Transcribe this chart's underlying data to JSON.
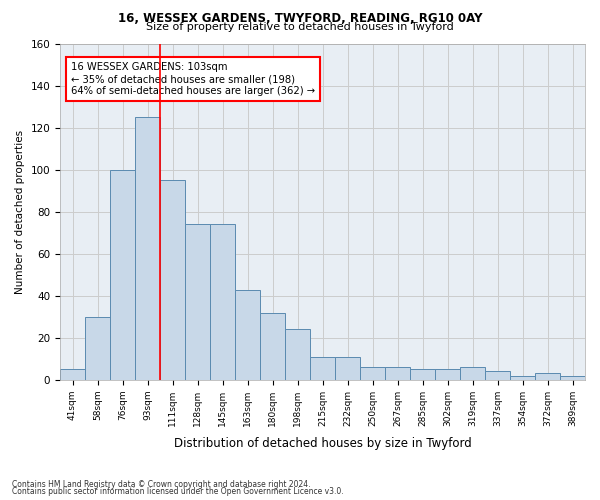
{
  "title1": "16, WESSEX GARDENS, TWYFORD, READING, RG10 0AY",
  "title2": "Size of property relative to detached houses in Twyford",
  "xlabel": "Distribution of detached houses by size in Twyford",
  "ylabel": "Number of detached properties",
  "bar_color": "#c8d8e8",
  "bar_edge_color": "#5a8ab0",
  "bins": [
    "41sqm",
    "58sqm",
    "76sqm",
    "93sqm",
    "111sqm",
    "128sqm",
    "145sqm",
    "163sqm",
    "180sqm",
    "198sqm",
    "215sqm",
    "232sqm",
    "250sqm",
    "267sqm",
    "285sqm",
    "302sqm",
    "319sqm",
    "337sqm",
    "354sqm",
    "372sqm",
    "389sqm"
  ],
  "bar_values": [
    5,
    30,
    100,
    125,
    95,
    74,
    74,
    43,
    32,
    24,
    11,
    11,
    6,
    6,
    5,
    5,
    6,
    4,
    2,
    3,
    2
  ],
  "vline_x": 3.5,
  "annotation_line1": "16 WESSEX GARDENS: 103sqm",
  "annotation_line2": "← 35% of detached houses are smaller (198)",
  "annotation_line3": "64% of semi-detached houses are larger (362) →",
  "annotation_box_color": "white",
  "annotation_box_edge": "red",
  "vline_color": "red",
  "ylim": [
    0,
    160
  ],
  "yticks": [
    0,
    20,
    40,
    60,
    80,
    100,
    120,
    140,
    160
  ],
  "grid_color": "#cccccc",
  "footer1": "Contains HM Land Registry data © Crown copyright and database right 2024.",
  "footer2": "Contains public sector information licensed under the Open Government Licence v3.0.",
  "background_color": "#e8eef4"
}
